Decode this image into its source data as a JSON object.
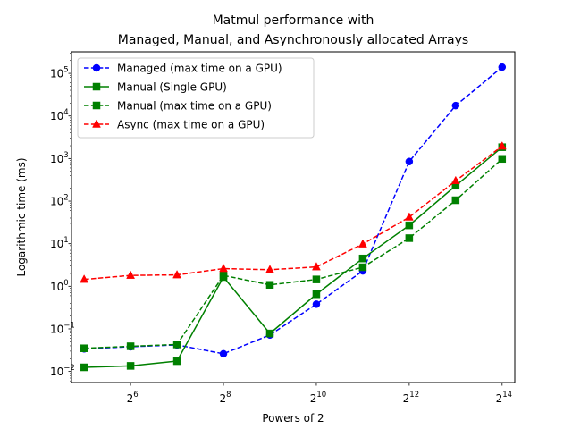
{
  "chart_data": {
    "type": "line",
    "title_lines": [
      "Matmul performance with",
      "Managed, Manual, and Asynchronously allocated Arrays"
    ],
    "xlabel": "Powers of 2",
    "ylabel": "Logarithmic time (ms)",
    "x_scale": "log2",
    "y_scale": "log10",
    "x": [
      32,
      64,
      128,
      256,
      512,
      1024,
      2048,
      4096,
      8192,
      16384
    ],
    "xlim": [
      26.5,
      19800
    ],
    "ylim": [
      0.0055,
      320000
    ],
    "x_ticks": [
      {
        "base": "2",
        "exp": "6",
        "value": 64
      },
      {
        "base": "2",
        "exp": "8",
        "value": 256
      },
      {
        "base": "2",
        "exp": "10",
        "value": 1024
      },
      {
        "base": "2",
        "exp": "12",
        "value": 4096
      },
      {
        "base": "2",
        "exp": "14",
        "value": 16384
      }
    ],
    "y_ticks": [
      {
        "base": "10",
        "exp": "−2",
        "value": 0.01
      },
      {
        "base": "10",
        "exp": "−1",
        "value": 0.1
      },
      {
        "base": "10",
        "exp": "0",
        "value": 1
      },
      {
        "base": "10",
        "exp": "1",
        "value": 10
      },
      {
        "base": "10",
        "exp": "2",
        "value": 100
      },
      {
        "base": "10",
        "exp": "3",
        "value": 1000
      },
      {
        "base": "10",
        "exp": "4",
        "value": 10000
      },
      {
        "base": "10",
        "exp": "5",
        "value": 100000
      }
    ],
    "grid": false,
    "legend_position": "top-left",
    "series": [
      {
        "name": "Managed (max time on a GPU)",
        "color": "#0000ff",
        "linestyle": "dashed",
        "marker": "circle",
        "values": [
          0.034,
          0.038,
          0.042,
          0.026,
          0.072,
          0.38,
          2.3,
          850,
          17500,
          140000
        ]
      },
      {
        "name": "Manual (Single GPU)",
        "color": "#008000",
        "linestyle": "solid",
        "marker": "square",
        "values": [
          0.0125,
          0.0135,
          0.0175,
          1.65,
          0.078,
          0.65,
          4.5,
          27,
          230,
          1850
        ]
      },
      {
        "name": "Manual (max time on a GPU)",
        "color": "#008000",
        "linestyle": "dashed",
        "marker": "square",
        "values": [
          0.035,
          0.039,
          0.043,
          1.8,
          1.08,
          1.45,
          2.8,
          13.5,
          105,
          980
        ]
      },
      {
        "name": "Async (max time on a GPU)",
        "color": "#ff0000",
        "linestyle": "dashed",
        "marker": "triangle",
        "values": [
          1.45,
          1.8,
          1.85,
          2.6,
          2.45,
          2.85,
          9.8,
          42,
          300,
          1950
        ]
      }
    ]
  }
}
